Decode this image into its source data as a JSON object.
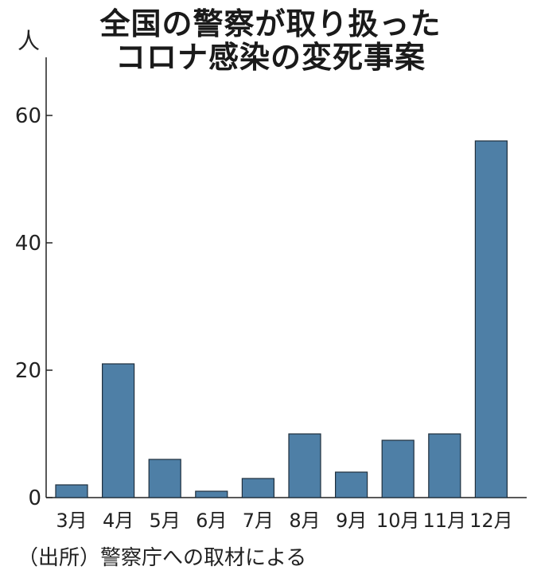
{
  "title_line1": "全国の警察が取り扱った",
  "title_line2": "コロナ感染の変死事案",
  "source": "（出所）警察庁への取材による",
  "chart_data": {
    "type": "bar",
    "title": "全国の警察が取り扱った コロナ感染の変死事案",
    "ylabel": "人",
    "xlabel": "",
    "ylim": [
      0,
      60
    ],
    "yticks": [
      0,
      20,
      40,
      60
    ],
    "grid": false,
    "categories": [
      "3月",
      "4月",
      "5月",
      "6月",
      "7月",
      "8月",
      "9月",
      "10月",
      "11月",
      "12月"
    ],
    "values": [
      2,
      21,
      6,
      1,
      3,
      10,
      4,
      9,
      10,
      56
    ],
    "colors": {
      "bar": "#4e7fa6",
      "bar_edge": "#1f2f3d",
      "axis": "#222222"
    }
  }
}
